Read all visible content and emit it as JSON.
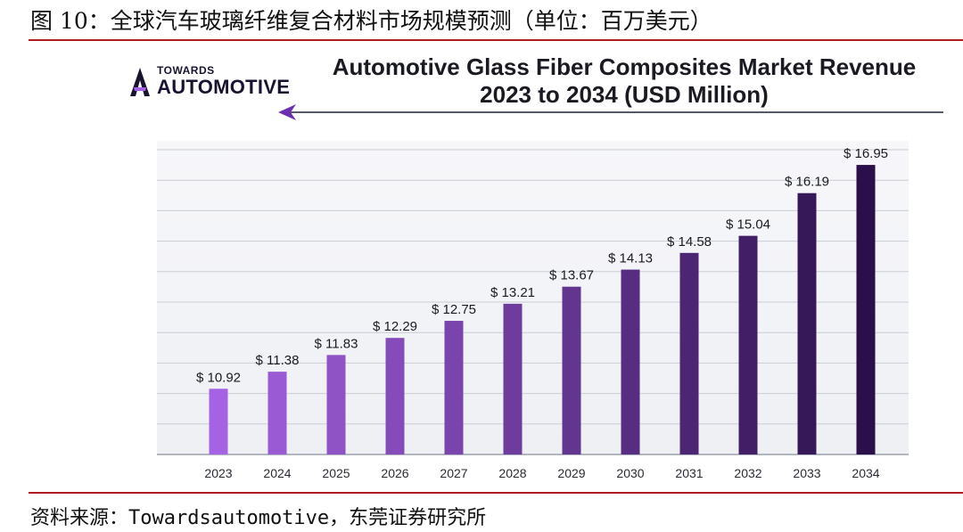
{
  "figure_title": "图 10：全球汽车玻璃纤维复合材料市场规模预测（单位：百万美元）",
  "source": "资料来源：Towardsautomotive，东莞证券研究所",
  "logo": {
    "line1": "TOWARDS",
    "line2": "AUTOMOTIVE"
  },
  "colors": {
    "rule": "#b01e23",
    "bar_start": "#a562e2",
    "bar_end": "#2b0f4a",
    "grid": "#c9cdd6",
    "text": "#222222"
  },
  "chart_data": {
    "type": "bar",
    "title": "Automotive Glass Fiber Composites Market Revenue",
    "subtitle": "2023 to 2034 (USD Million)",
    "xlabel": "",
    "ylabel": "",
    "grid": true,
    "categories": [
      "2023",
      "2024",
      "2025",
      "2026",
      "2027",
      "2028",
      "2029",
      "2030",
      "2031",
      "2032",
      "2033",
      "2034"
    ],
    "values": [
      10.92,
      11.38,
      11.83,
      12.29,
      12.75,
      13.21,
      13.67,
      14.13,
      14.58,
      15.04,
      16.19,
      16.95
    ],
    "value_labels": [
      "$ 10.92",
      "$ 11.38",
      "$ 11.83",
      "$ 12.29",
      "$ 12.75",
      "$ 13.21",
      "$ 13.67",
      "$ 14.13",
      "$ 14.58",
      "$ 15.04",
      "$ 16.19",
      "$ 16.95"
    ],
    "ylim": [
      9.15,
      17.6
    ]
  }
}
